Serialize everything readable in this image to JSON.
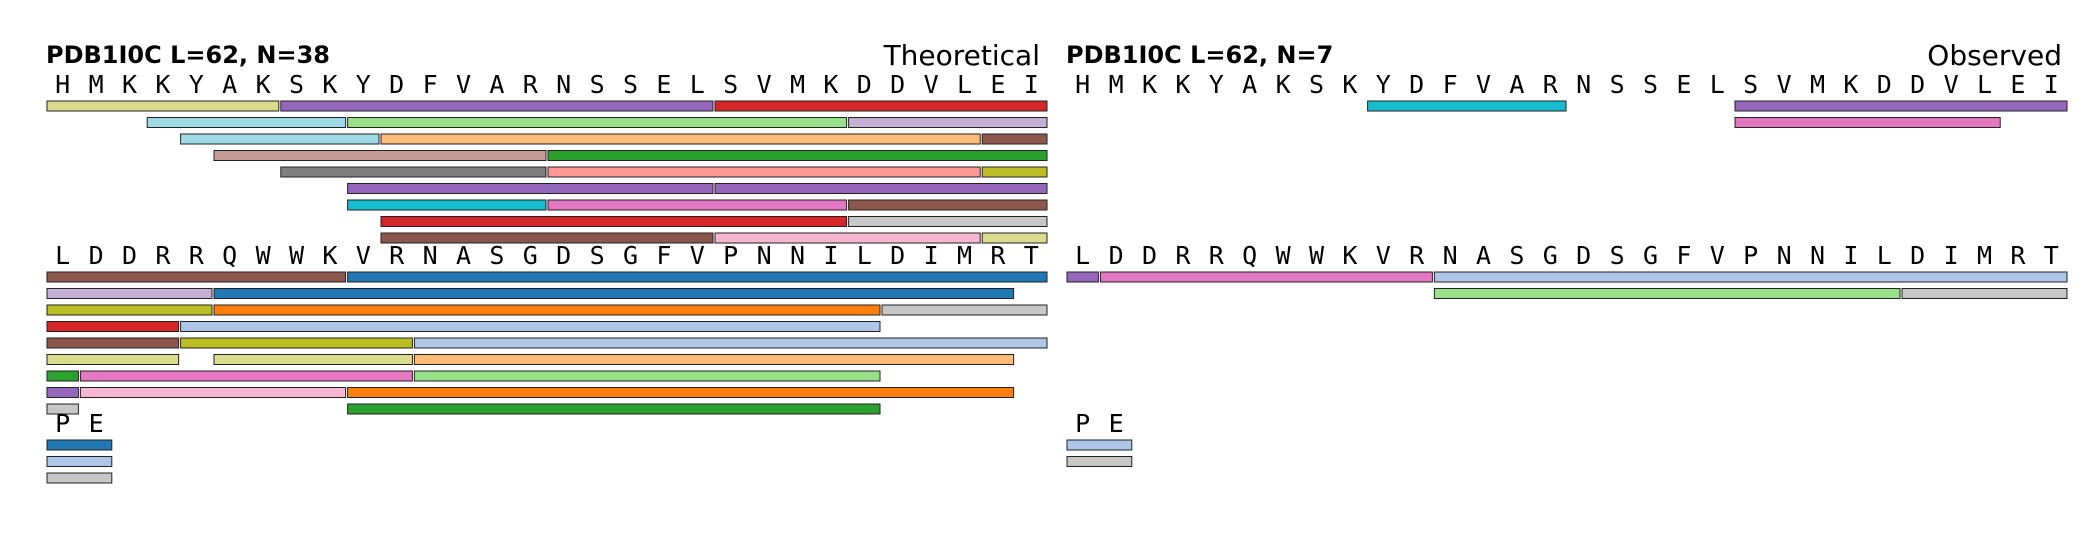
{
  "chart_data": [
    {
      "type": "peptide-coverage",
      "header": "PDB1I0C  L=62, N=38",
      "title": "Theoretical",
      "rows": [
        {
          "residues": [
            "H",
            "M",
            "K",
            "K",
            "Y",
            "A",
            "K",
            "S",
            "K",
            "Y",
            "D",
            "F",
            "V",
            "A",
            "R",
            "N",
            "S",
            "S",
            "E",
            "L",
            "S",
            "V",
            "M",
            "K",
            "D",
            "D",
            "V",
            "L",
            "E",
            "I"
          ],
          "peptides": [
            {
              "start": 0,
              "end": 6,
              "lane": 0,
              "color": "#dbdb8d"
            },
            {
              "start": 7,
              "end": 19,
              "lane": 0,
              "color": "#9467bd"
            },
            {
              "start": 20,
              "end": 29,
              "lane": 0,
              "color": "#d62728"
            },
            {
              "start": 3,
              "end": 8,
              "lane": 1,
              "color": "#9edae5"
            },
            {
              "start": 9,
              "end": 23,
              "lane": 1,
              "color": "#98df8a"
            },
            {
              "start": 24,
              "end": 29,
              "lane": 1,
              "color": "#c5b0d5"
            },
            {
              "start": 4,
              "end": 9,
              "lane": 2,
              "color": "#9edae5"
            },
            {
              "start": 10,
              "end": 27,
              "lane": 2,
              "color": "#ffbb78"
            },
            {
              "start": 28,
              "end": 29,
              "lane": 2,
              "color": "#8c564b"
            },
            {
              "start": 5,
              "end": 14,
              "lane": 3,
              "color": "#c49c94"
            },
            {
              "start": 15,
              "end": 29,
              "lane": 3,
              "color": "#2ca02c"
            },
            {
              "start": 7,
              "end": 14,
              "lane": 4,
              "color": "#7f7f7f"
            },
            {
              "start": 15,
              "end": 27,
              "lane": 4,
              "color": "#ff9896"
            },
            {
              "start": 28,
              "end": 29,
              "lane": 4,
              "color": "#bcbd22"
            },
            {
              "start": 9,
              "end": 19,
              "lane": 5,
              "color": "#9467bd"
            },
            {
              "start": 20,
              "end": 29,
              "lane": 5,
              "color": "#9467bd"
            },
            {
              "start": 9,
              "end": 14,
              "lane": 6,
              "color": "#17becf"
            },
            {
              "start": 15,
              "end": 23,
              "lane": 6,
              "color": "#e377c2"
            },
            {
              "start": 24,
              "end": 29,
              "lane": 6,
              "color": "#8c564b"
            },
            {
              "start": 10,
              "end": 23,
              "lane": 7,
              "color": "#d62728"
            },
            {
              "start": 24,
              "end": 29,
              "lane": 7,
              "color": "#c7c7c7"
            },
            {
              "start": 10,
              "end": 19,
              "lane": 8,
              "color": "#8c564b"
            },
            {
              "start": 20,
              "end": 27,
              "lane": 8,
              "color": "#f7b6d2"
            },
            {
              "start": 28,
              "end": 29,
              "lane": 8,
              "color": "#dbdb8d"
            }
          ]
        },
        {
          "residues": [
            "L",
            "D",
            "D",
            "R",
            "R",
            "Q",
            "W",
            "W",
            "K",
            "V",
            "R",
            "N",
            "A",
            "S",
            "G",
            "D",
            "S",
            "G",
            "F",
            "V",
            "P",
            "N",
            "N",
            "I",
            "L",
            "D",
            "I",
            "M",
            "R",
            "T"
          ],
          "peptides": [
            {
              "start": 0,
              "end": 8,
              "lane": 0,
              "color": "#8c564b"
            },
            {
              "start": 9,
              "end": 29,
              "lane": 0,
              "color": "#1f77b4"
            },
            {
              "start": 0,
              "end": 4,
              "lane": 1,
              "color": "#c5b0d5"
            },
            {
              "start": 5,
              "end": 28,
              "lane": 1,
              "color": "#1f77b4"
            },
            {
              "start": 0,
              "end": 4,
              "lane": 2,
              "color": "#bcbd22"
            },
            {
              "start": 5,
              "end": 24,
              "lane": 2,
              "color": "#ff7f0e"
            },
            {
              "start": 25,
              "end": 29,
              "lane": 2,
              "color": "#c7c7c7"
            },
            {
              "start": 0,
              "end": 3,
              "lane": 3,
              "color": "#d62728"
            },
            {
              "start": 4,
              "end": 24,
              "lane": 3,
              "color": "#aec7e8"
            },
            {
              "start": 0,
              "end": 3,
              "lane": 4,
              "color": "#8c564b"
            },
            {
              "start": 4,
              "end": 10,
              "lane": 4,
              "color": "#bcbd22"
            },
            {
              "start": 11,
              "end": 29,
              "lane": 4,
              "color": "#aec7e8"
            },
            {
              "start": 0,
              "end": 3,
              "lane": 5,
              "color": "#dbdb8d"
            },
            {
              "start": 5,
              "end": 10,
              "lane": 5,
              "color": "#dbdb8d"
            },
            {
              "start": 11,
              "end": 28,
              "lane": 5,
              "color": "#ffbb78"
            },
            {
              "start": 0,
              "end": 0,
              "lane": 6,
              "color": "#2ca02c"
            },
            {
              "start": 1,
              "end": 10,
              "lane": 6,
              "color": "#e377c2"
            },
            {
              "start": 11,
              "end": 24,
              "lane": 6,
              "color": "#98df8a"
            },
            {
              "start": 0,
              "end": 0,
              "lane": 7,
              "color": "#9467bd"
            },
            {
              "start": 1,
              "end": 8,
              "lane": 7,
              "color": "#f7b6d2"
            },
            {
              "start": 9,
              "end": 28,
              "lane": 7,
              "color": "#ff7f0e"
            },
            {
              "start": 0,
              "end": 0,
              "lane": 8,
              "color": "#c7c7c7"
            },
            {
              "start": 9,
              "end": 24,
              "lane": 8,
              "color": "#2ca02c"
            }
          ]
        },
        {
          "residues": [
            "P",
            "E"
          ],
          "peptides": [
            {
              "start": 0,
              "end": 1,
              "lane": 0,
              "color": "#1f77b4"
            },
            {
              "start": 0,
              "end": 1,
              "lane": 1,
              "color": "#aec7e8"
            },
            {
              "start": 0,
              "end": 1,
              "lane": 2,
              "color": "#c7c7c7"
            }
          ]
        }
      ]
    },
    {
      "type": "peptide-coverage",
      "header": "PDB1I0C  L=62, N=7",
      "title": "Observed",
      "rows": [
        {
          "residues": [
            "H",
            "M",
            "K",
            "K",
            "Y",
            "A",
            "K",
            "S",
            "K",
            "Y",
            "D",
            "F",
            "V",
            "A",
            "R",
            "N",
            "S",
            "S",
            "E",
            "L",
            "S",
            "V",
            "M",
            "K",
            "D",
            "D",
            "V",
            "L",
            "E",
            "I"
          ],
          "peptides": [
            {
              "start": 9,
              "end": 14,
              "lane": 0,
              "color": "#17becf"
            },
            {
              "start": 20,
              "end": 29,
              "lane": 0,
              "color": "#9467bd"
            },
            {
              "start": 20,
              "end": 27,
              "lane": 1,
              "color": "#e377c2"
            }
          ]
        },
        {
          "residues": [
            "L",
            "D",
            "D",
            "R",
            "R",
            "Q",
            "W",
            "W",
            "K",
            "V",
            "R",
            "N",
            "A",
            "S",
            "G",
            "D",
            "S",
            "G",
            "F",
            "V",
            "P",
            "N",
            "N",
            "I",
            "L",
            "D",
            "I",
            "M",
            "R",
            "T"
          ],
          "peptides": [
            {
              "start": 0,
              "end": 0,
              "lane": 0,
              "color": "#9467bd"
            },
            {
              "start": 1,
              "end": 10,
              "lane": 0,
              "color": "#e377c2"
            },
            {
              "start": 11,
              "end": 29,
              "lane": 0,
              "color": "#aec7e8"
            },
            {
              "start": 11,
              "end": 24,
              "lane": 1,
              "color": "#98df8a"
            },
            {
              "start": 25,
              "end": 29,
              "lane": 1,
              "color": "#c7c7c7"
            }
          ]
        },
        {
          "residues": [
            "P",
            "E"
          ],
          "peptides": [
            {
              "start": 0,
              "end": 1,
              "lane": 0,
              "color": "#aec7e8"
            },
            {
              "start": 0,
              "end": 1,
              "lane": 1,
              "color": "#c7c7c7"
            }
          ]
        }
      ]
    }
  ]
}
